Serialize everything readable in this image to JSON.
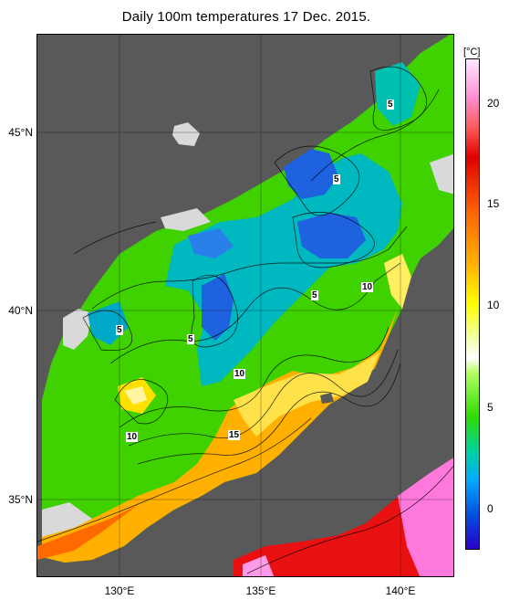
{
  "title": "Daily 100m temperatures 17 Dec. 2015.",
  "latitude_labels": [
    "45°N",
    "40°N",
    "35°N"
  ],
  "longitude_labels": [
    "130°E",
    "135°E",
    "140°E"
  ],
  "colorbar": {
    "unit": "[°C]",
    "ticks": [
      "20",
      "15",
      "10",
      "5",
      "0"
    ]
  },
  "contour_labels": [
    "5",
    "5",
    "5",
    "5",
    "5",
    "10",
    "10",
    "10",
    "15"
  ],
  "colors": {
    "land": "#595959",
    "no_data": "#d9d9d9",
    "cold": "#1a5ce0",
    "cool": "#00b4c8",
    "mild": "#39d600",
    "warm": "#ffd200",
    "hot": "#ff7a00",
    "very_hot": "#e81010",
    "pink": "#ff78dc"
  }
}
